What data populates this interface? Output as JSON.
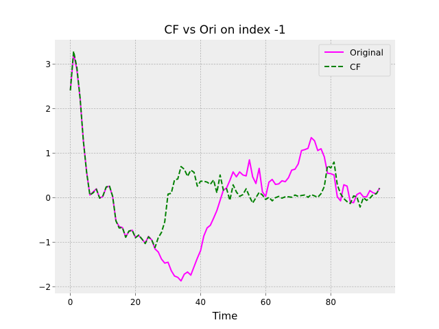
{
  "chart_data": {
    "type": "line",
    "title": "CF vs Ori on index -1",
    "xlabel": "Time",
    "ylabel": "",
    "xlim": [
      -4.75,
      99.75
    ],
    "ylim": [
      -2.15,
      3.55
    ],
    "xticks": [
      0,
      20,
      40,
      60,
      80
    ],
    "yticks": [
      -2,
      -1,
      0,
      1,
      2,
      3
    ],
    "grid": true,
    "legend_position": "top-right",
    "series": [
      {
        "name": "Original",
        "color": "#ff00ff",
        "style": "solid",
        "y": [
          2.41,
          3.24,
          2.88,
          2.23,
          1.28,
          0.58,
          0.06,
          0.13,
          0.2,
          -0.01,
          0.03,
          0.23,
          0.26,
          0.02,
          -0.52,
          -0.65,
          -0.67,
          -0.88,
          -0.76,
          -0.73,
          -0.89,
          -0.85,
          -0.93,
          -1.02,
          -0.87,
          -0.95,
          -1.15,
          -1.22,
          -1.38,
          -1.47,
          -1.45,
          -1.64,
          -1.76,
          -1.79,
          -1.87,
          -1.72,
          -1.67,
          -1.74,
          -1.55,
          -1.36,
          -1.19,
          -0.86,
          -0.68,
          -0.62,
          -0.46,
          -0.29,
          -0.06,
          0.17,
          0.22,
          0.39,
          0.58,
          0.47,
          0.58,
          0.51,
          0.49,
          0.85,
          0.47,
          0.32,
          0.66,
          0.13,
          0.03,
          0.35,
          0.41,
          0.3,
          0.31,
          0.38,
          0.36,
          0.45,
          0.62,
          0.64,
          0.76,
          1.06,
          1.08,
          1.11,
          1.35,
          1.28,
          1.06,
          1.1,
          0.92,
          0.55,
          0.54,
          0.51,
          0.02,
          -0.07,
          0.29,
          0.26,
          -0.1,
          -0.11,
          0.07,
          0.11,
          0.02,
          0.02,
          0.16,
          0.11,
          0.09,
          0.22
        ]
      },
      {
        "name": "CF",
        "color": "#008000",
        "style": "dashed",
        "y": [
          2.41,
          3.29,
          2.93,
          2.24,
          1.28,
          0.57,
          0.06,
          0.11,
          0.19,
          -0.01,
          0.04,
          0.24,
          0.27,
          0.03,
          -0.52,
          -0.68,
          -0.67,
          -0.89,
          -0.75,
          -0.73,
          -0.9,
          -0.84,
          -0.93,
          -1.03,
          -0.88,
          -0.95,
          -1.12,
          -0.9,
          -0.78,
          -0.54,
          0.08,
          0.1,
          0.4,
          0.42,
          0.7,
          0.64,
          0.48,
          0.62,
          0.57,
          0.26,
          0.37,
          0.37,
          0.35,
          0.3,
          0.4,
          0.11,
          0.51,
          0.17,
          0.2,
          -0.06,
          0.29,
          0.13,
          0.03,
          0.07,
          0.2,
          0.03,
          -0.12,
          0.0,
          0.12,
          0.06,
          -0.04,
          0.01,
          -0.07,
          0.0,
          0.03,
          -0.01,
          0.02,
          0.02,
          0.01,
          0.06,
          0.03,
          0.05,
          0.06,
          0.01,
          0.07,
          0.04,
          0.01,
          0.09,
          0.25,
          0.72,
          0.67,
          0.8,
          0.29,
          0.09,
          -0.02,
          -0.09,
          -0.13,
          0.04,
          0.02,
          -0.21,
          0.0,
          -0.06,
          -0.01,
          0.07,
          0.09,
          0.21
        ]
      }
    ]
  }
}
